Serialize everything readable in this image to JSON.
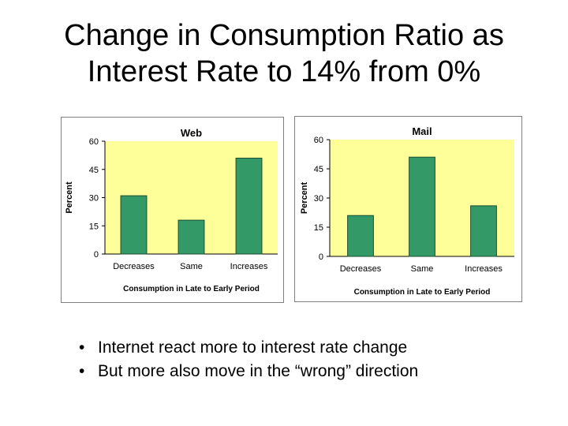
{
  "slide": {
    "title_line1": "Change in Consumption Ratio as",
    "title_line2": "Interest Rate to 14% from 0%",
    "bullets": [
      "Internet react more to interest rate change",
      "But more also move in the “wrong” direction"
    ],
    "bullet_glyph": "•"
  },
  "colors": {
    "plot_bg": "#FFFF99",
    "bar": "#339966",
    "bar_stroke": "#1a4d33",
    "text": "#000000"
  },
  "chart_data": [
    {
      "type": "bar",
      "title": "Web",
      "categories": [
        "Decreases",
        "Same",
        "Increases"
      ],
      "values": [
        31,
        18,
        51
      ],
      "xlabel": "Consumption in Late to Early Period",
      "ylabel": "Percent",
      "ylim": [
        0,
        60
      ],
      "yticks": [
        0,
        15,
        30,
        45,
        60
      ],
      "grid": false,
      "legend": "none"
    },
    {
      "type": "bar",
      "title": "Mail",
      "categories": [
        "Decreases",
        "Same",
        "Increases"
      ],
      "values": [
        21,
        51,
        26
      ],
      "xlabel": "Consumption in Late to Early Period",
      "ylabel": "Percent",
      "ylim": [
        0,
        60
      ],
      "yticks": [
        0,
        15,
        30,
        45,
        60
      ],
      "grid": false,
      "legend": "none"
    }
  ]
}
